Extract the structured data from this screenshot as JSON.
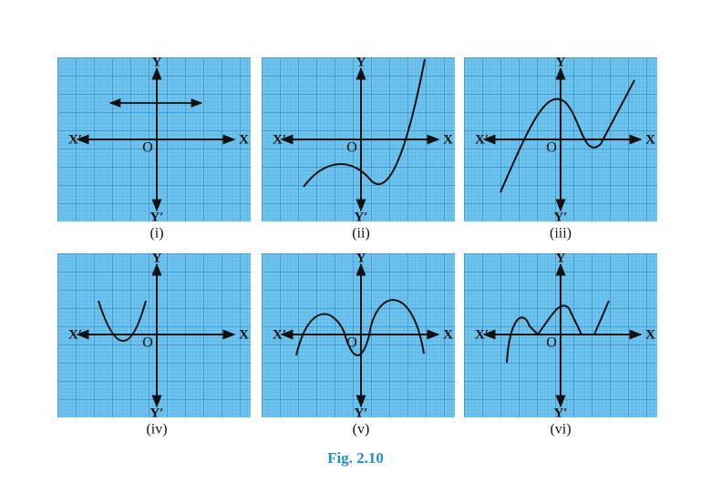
{
  "panels": [
    {
      "label": "(i)",
      "x_pos": "X",
      "x_neg": "X′",
      "y_pos": "Y",
      "y_neg": "Y′",
      "origin": "O"
    },
    {
      "label": "(ii)",
      "x_pos": "X",
      "x_neg": "X′",
      "y_pos": "Y",
      "y_neg": "Y′",
      "origin": "O"
    },
    {
      "label": "(iii)",
      "x_pos": "X",
      "x_neg": "X′",
      "y_pos": "Y",
      "y_neg": "Y′",
      "origin": "O"
    },
    {
      "label": "(iv)",
      "x_pos": "X",
      "x_neg": "X′",
      "y_pos": "Y",
      "y_neg": "Y′",
      "origin": "O"
    },
    {
      "label": "(v)",
      "x_pos": "X",
      "x_neg": "X′",
      "y_pos": "Y",
      "y_neg": "Y′",
      "origin": "O"
    },
    {
      "label": "(vi)",
      "x_pos": "X",
      "x_neg": "X′",
      "y_pos": "Y",
      "y_neg": "Y′",
      "origin": "O"
    }
  ],
  "caption": "Fig. 2.10"
}
